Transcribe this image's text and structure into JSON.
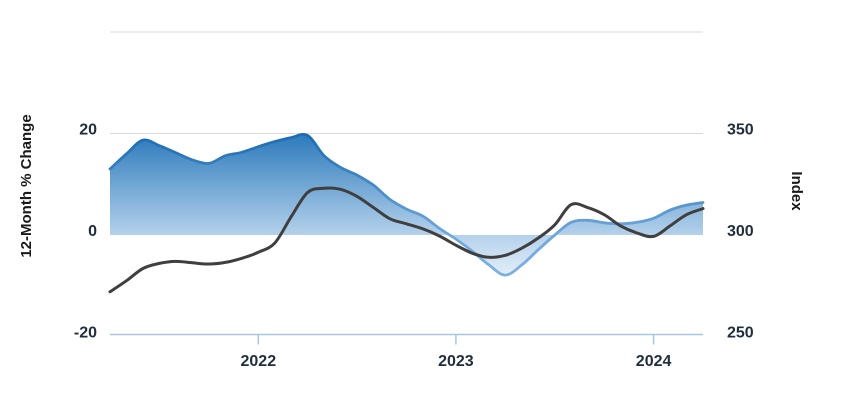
{
  "chart_data": {
    "type": "area",
    "title": "",
    "x": [
      "2021-04",
      "2021-05",
      "2021-06",
      "2021-07",
      "2021-08",
      "2021-09",
      "2021-10",
      "2021-11",
      "2021-12",
      "2022-01",
      "2022-02",
      "2022-03",
      "2022-04",
      "2022-05",
      "2022-06",
      "2022-07",
      "2022-08",
      "2022-09",
      "2022-10",
      "2022-11",
      "2022-12",
      "2023-01",
      "2023-02",
      "2023-03",
      "2023-04",
      "2023-05",
      "2023-06",
      "2023-07",
      "2023-08",
      "2023-09",
      "2023-10",
      "2023-11",
      "2023-12",
      "2024-01",
      "2024-02",
      "2024-03",
      "2024-04"
    ],
    "series": [
      {
        "name": "12-Month % Change",
        "type": "area",
        "axis": "left",
        "values": [
          13.0,
          16.0,
          18.7,
          17.6,
          16.2,
          14.8,
          14.1,
          15.6,
          16.3,
          17.4,
          18.4,
          19.2,
          19.6,
          15.6,
          13.3,
          11.8,
          9.8,
          7.0,
          5.1,
          3.7,
          1.3,
          -0.8,
          -3.2,
          -5.9,
          -7.9,
          -5.9,
          -2.9,
          0.0,
          2.5,
          2.9,
          2.4,
          2.2,
          2.5,
          3.3,
          4.9,
          5.9,
          6.4
        ]
      },
      {
        "name": "Index",
        "type": "line",
        "axis": "right",
        "values": [
          272,
          277.5,
          283.5,
          286,
          287,
          286.3,
          285.7,
          286.5,
          288.5,
          291.5,
          296,
          309,
          321,
          323,
          322.5,
          319,
          313.5,
          308,
          305.5,
          303,
          299.5,
          295,
          291,
          289,
          290,
          293.5,
          298.5,
          305,
          315,
          313.5,
          310,
          304.5,
          301,
          299.3,
          304.5,
          310,
          313
        ]
      }
    ],
    "left_axis": {
      "label": "12-Month % Change",
      "range": [
        -20,
        40
      ],
      "ticks": [
        {
          "value": 20,
          "label": "20"
        },
        {
          "value": 0,
          "label": "0"
        },
        {
          "value": -20,
          "label": "-20"
        }
      ],
      "gridline_values": [
        40,
        20
      ]
    },
    "right_axis": {
      "label": "Index",
      "range": [
        250,
        400
      ],
      "ticks": [
        {
          "value": 350,
          "label": "350"
        },
        {
          "value": 300,
          "label": "300"
        },
        {
          "value": 250,
          "label": "250"
        }
      ]
    },
    "x_axis": {
      "ticks": [
        {
          "label": "2022",
          "month_index": 9
        },
        {
          "label": "2023",
          "month_index": 21
        },
        {
          "label": "2024",
          "month_index": 33
        }
      ]
    },
    "legend": "none",
    "grid": "horizontal",
    "colors": {
      "area_gradient_top": "#2b79bb",
      "area_gradient_mid": "#b4d1eb",
      "area_gradient_bottom": "#f4f9fd",
      "area_line_top": "#1a6ab1",
      "area_line_mid": "#6fa7db",
      "area_line_bottom": "#82b4e4",
      "index_line": "#3f3f3f",
      "gridline": "#d9d9d9",
      "axis_line": "#a9c6e1",
      "label_text": "#1f2d3d",
      "title_text": "#1a1a1a"
    }
  }
}
